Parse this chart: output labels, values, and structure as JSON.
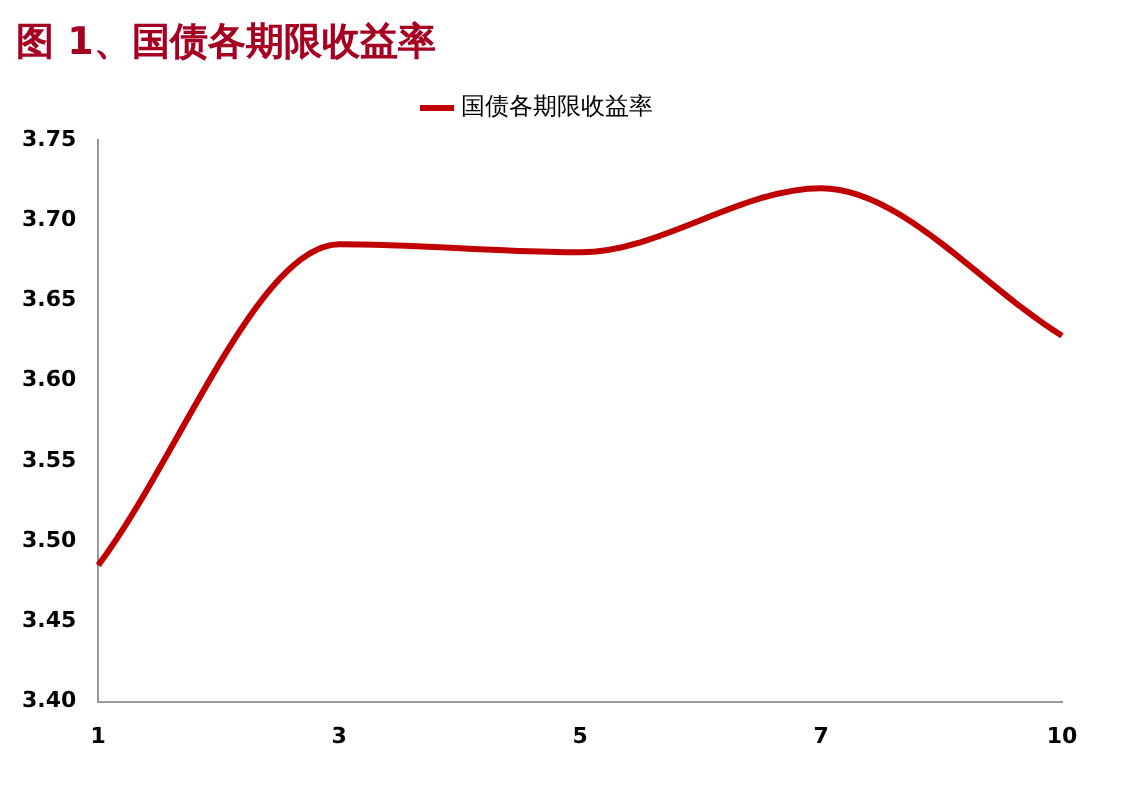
{
  "chart_data": {
    "type": "line",
    "title": "图 1、国债各期限收益率",
    "categories": [
      "1",
      "3",
      "5",
      "7",
      "10"
    ],
    "series": [
      {
        "name": "国债各期限收益率",
        "color": "#c00000",
        "values": [
          3.485,
          3.685,
          3.68,
          3.72,
          3.628
        ]
      }
    ],
    "ylim": [
      3.4,
      3.75
    ],
    "yticks": [
      {
        "value": 3.4,
        "label": "3.40"
      },
      {
        "value": 3.45,
        "label": "3.45"
      },
      {
        "value": 3.5,
        "label": "3.50"
      },
      {
        "value": 3.55,
        "label": "3.55"
      },
      {
        "value": 3.6,
        "label": "3.60"
      },
      {
        "value": 3.65,
        "label": "3.65"
      },
      {
        "value": 3.7,
        "label": "3.70"
      },
      {
        "value": 3.75,
        "label": "3.75"
      }
    ],
    "grid": false,
    "legend": "top",
    "marker": "none",
    "line_style": "solid"
  }
}
